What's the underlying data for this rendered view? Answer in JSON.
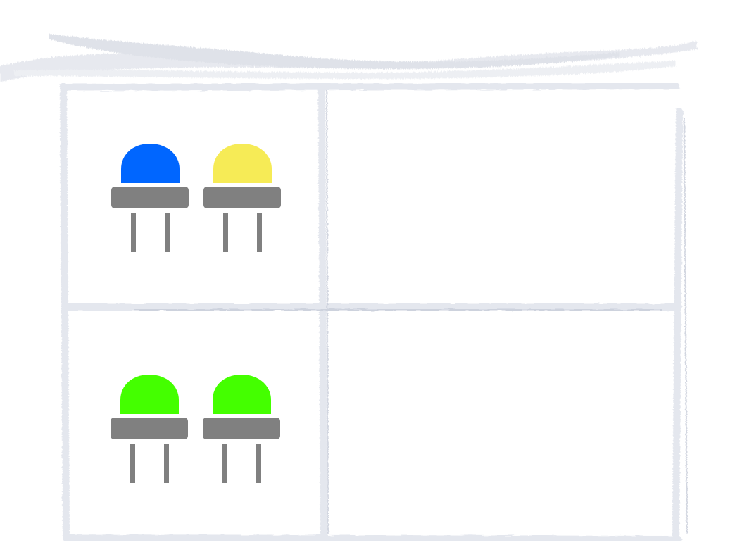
{
  "colors": {
    "background": "#ffffff",
    "frame": "#e9ecf1",
    "brush": "#c9ceda",
    "led_base": "#808080",
    "led_leg": "#808080"
  },
  "board": {
    "rows": 2,
    "columns": 2,
    "cells": [
      {
        "id": "top-left",
        "leds": [
          {
            "color_name": "blue",
            "color": "#0066ff"
          },
          {
            "color_name": "yellow",
            "color": "#f6eb56"
          }
        ]
      },
      {
        "id": "top-right",
        "leds": []
      },
      {
        "id": "bottom-left",
        "leds": [
          {
            "color_name": "green",
            "color": "#44ff00"
          },
          {
            "color_name": "green",
            "color": "#44ff00"
          }
        ]
      },
      {
        "id": "bottom-right",
        "leds": []
      }
    ]
  }
}
